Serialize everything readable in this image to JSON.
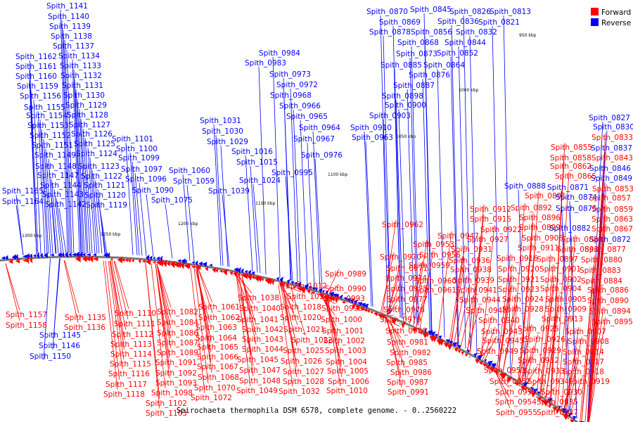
{
  "title": "Spirochaeta thermophila DSM 6578, complete genome. - 0..2560222",
  "legend": [
    {
      "label": "Forward",
      "color": "#ff0000"
    },
    {
      "label": "Reverse",
      "color": "#0000ff"
    }
  ],
  "colors": {
    "forward": "#ff0000",
    "reverse": "#0000ff",
    "backbone": "#888888"
  },
  "ticks": [
    "950 kbp",
    "1000 kbp",
    "1050 kbp",
    "1100 kbp",
    "1150 kbp",
    "1200 kbp",
    "1250 kbp",
    "1300 kbp"
  ],
  "reverse_labels": [
    "Spith_1141",
    "Spith_1140",
    "Spith_1139",
    "Spith_1138",
    "Spith_1137",
    "Spith_1162",
    "Spith_1134",
    "Spith_1161",
    "Spith_1133",
    "Spith_1160",
    "Spith_1132",
    "Spith_1159",
    "Spith_1131",
    "Spith_1156",
    "Spith_1130",
    "Spith_1155",
    "Spith_1129",
    "Spith_1154",
    "Spith_1128",
    "Spith_1153",
    "Spith_1127",
    "Spith_1152",
    "Spith_1126",
    "Spith_1151",
    "Spith_1125",
    "Spith_1149",
    "Spith_1124",
    "Spith_1148",
    "Spith_1123",
    "Spith_1147",
    "Spith_1122",
    "Spith_1144",
    "Spith_1121",
    "Spith_1143",
    "Spith_1120",
    "Spith_1165",
    "Spith_1164",
    "Spith_1142",
    "Spith_1119",
    "Spith_1101",
    "Spith_1100",
    "Spith_1099",
    "Spith_1097",
    "Spith_1096",
    "Spith_1090",
    "Spith_1060",
    "Spith_1059",
    "Spith_1075",
    "Spith_1031",
    "Spith_1030",
    "Spith_1029",
    "Spith_1016",
    "Spith_1015",
    "Spith_1024",
    "Spith_1039",
    "Spith_0984",
    "Spith_0983",
    "Spith_0973",
    "Spith_0972",
    "Spith_0968",
    "Spith_0966",
    "Spith_0965",
    "Spith_0964",
    "Spith_0967",
    "Spith_0976",
    "Spith_0995",
    "Spith_0910",
    "Spith_0963",
    "Spith_0870",
    "Spith_0845",
    "Spith_0826",
    "Spith_0813",
    "Spith_0869",
    "Spith_0836",
    "Spith_0821",
    "Spith_0878",
    "Spith_0856",
    "Spith_0832",
    "Spith_0868",
    "Spith_0844",
    "Spith_0873",
    "Spith_0852",
    "Spith_0885",
    "Spith_0864",
    "Spith_0876",
    "Spith_0887",
    "Spith_0898",
    "Spith_0900",
    "Spith_0903",
    "Spith_0827",
    "Spith_0830",
    "Spith_0837",
    "Spith_0846",
    "Spith_0849",
    "Spith_0888",
    "Spith_0871",
    "Spith_0874",
    "Spith_0875",
    "Spith_0882",
    "Spith_0872",
    "Spith_0886",
    "Spith_1145",
    "Spith_1146",
    "Spith_1150"
  ],
  "forward_labels": [
    "Spith_0833",
    "Spith_0855",
    "Spith_0843",
    "Spith_0858",
    "Spith_0862",
    "Spith_0865",
    "Spith_0853",
    "Spith_0857",
    "Spith_0859",
    "Spith_0863",
    "Spith_0867",
    "Spith_0891",
    "Spith_0892",
    "Spith_0912",
    "Spith_0896",
    "Spith_0915",
    "Spith_0899",
    "Spith_0922",
    "Spith_0906",
    "Spith_0889",
    "Spith_0927",
    "Spith_0911",
    "Spith_0893",
    "Spith_0877",
    "Spith_0962",
    "Spith_0947",
    "Spith_0931",
    "Spith_0916",
    "Spith_0897",
    "Spith_0880",
    "Spith_0953",
    "Spith_0936",
    "Spith_0920",
    "Spith_0901",
    "Spith_0883",
    "Spith_0956",
    "Spith_0938",
    "Spith_0921",
    "Spith_0902",
    "Spith_0884",
    "Spith_0959",
    "Spith_0939",
    "Spith_0923",
    "Spith_0904",
    "Spith_0886",
    "Spith_0960",
    "Spith_0941",
    "Spith_0924",
    "Spith_0905",
    "Spith_0890",
    "Spith_0961",
    "Spith_0944",
    "Spith_0928",
    "Spith_0909",
    "Spith_0894",
    "Spith_0948",
    "Spith_0913",
    "Spith_0895",
    "Spith_0940",
    "Spith_0925",
    "Spith_0907",
    "Spith_0943",
    "Spith_0926",
    "Spith_0908",
    "Spith_0945",
    "Spith_0929",
    "Spith_0914",
    "Spith_0949",
    "Spith_0932",
    "Spith_0917",
    "Spith_0951",
    "Spith_0933",
    "Spith_0918",
    "Spith_0952",
    "Spith_0934",
    "Spith_0919",
    "Spith_0950",
    "Spith_0930",
    "Spith_0954",
    "Spith_0935",
    "Spith_0955",
    "Spith_0937",
    "Spith_0970",
    "Spith_0971",
    "Spith_0989",
    "Spith_0974",
    "Spith_0990",
    "Spith_0975",
    "Spith_0993",
    "Spith_0977",
    "Spith_0998",
    "Spith_0978",
    "Spith_1000",
    "Spith_0979",
    "Spith_1001",
    "Spith_0980",
    "Spith_1002",
    "Spith_0981",
    "Spith_1003",
    "Spith_0982",
    "Spith_1004",
    "Spith_0985",
    "Spith_1005",
    "Spith_0986",
    "Spith_1006",
    "Spith_0987",
    "Spith_1010",
    "Spith_0991",
    "Spith_1012",
    "Spith_1014",
    "Spith_1018",
    "Spith_1020",
    "Spith_1021",
    "Spith_1022",
    "Spith_1025",
    "Spith_1026",
    "Spith_1027",
    "Spith_1028",
    "Spith_1032",
    "Spith_1038",
    "Spith_1040",
    "Spith_1041",
    "Spith_1042",
    "Spith_1043",
    "Spith_1044",
    "Spith_1045",
    "Spith_1047",
    "Spith_1048",
    "Spith_1049",
    "Spith_1061",
    "Spith_1062",
    "Spith_1063",
    "Spith_1064",
    "Spith_1065",
    "Spith_1066",
    "Spith_1067",
    "Spith_1068",
    "Spith_1070",
    "Spith_1072",
    "Spith_1082",
    "Spith_1084",
    "Spith_1086",
    "Spith_1087",
    "Spith_1089",
    "Spith_1091",
    "Spith_1092",
    "Spith_1093",
    "Spith_1098",
    "Spith_1102",
    "Spith_1103",
    "Spith_1110",
    "Spith_1111",
    "Spith_1112",
    "Spith_1113",
    "Spith_1114",
    "Spith_1115",
    "Spith_1116",
    "Spith_1117",
    "Spith_1118",
    "Spith_1157",
    "Spith_1158",
    "Spith_1135",
    "Spith_1136"
  ]
}
